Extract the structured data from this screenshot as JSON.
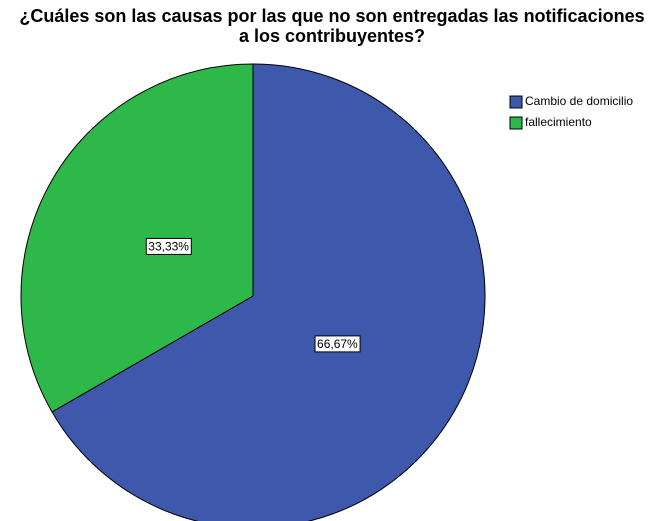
{
  "chart_data": {
    "type": "pie",
    "title": "¿Cuáles son las causas por las que no son entregadas las notificaciones a los contribuyentes?",
    "categories": [
      "Cambio de domicilio",
      "fallecimiento"
    ],
    "values": [
      66.67,
      33.33
    ],
    "value_labels": [
      "66,67%",
      "33,33%"
    ],
    "colors": [
      "#3e58ac",
      "#2eb84a"
    ],
    "legend": "top-right"
  }
}
